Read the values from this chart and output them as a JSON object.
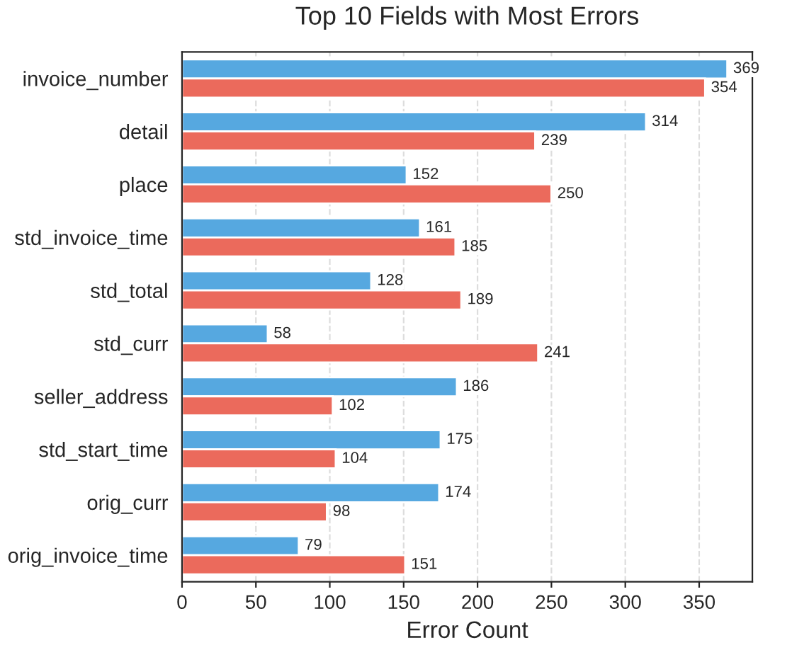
{
  "chart_data": {
    "type": "bar",
    "orientation": "horizontal",
    "title": "Top 10 Fields with Most Errors",
    "xlabel": "Error Count",
    "categories": [
      "invoice_number",
      "detail",
      "place",
      "std_invoice_time",
      "std_total",
      "std_curr",
      "seller_address",
      "std_start_time",
      "orig_curr",
      "orig_invoice_time"
    ],
    "series": [
      {
        "color": "#56a8e0",
        "values": [
          369,
          314,
          152,
          161,
          128,
          58,
          186,
          175,
          174,
          79
        ]
      },
      {
        "color": "#eb6a5c",
        "values": [
          354,
          239,
          250,
          185,
          189,
          241,
          102,
          104,
          98,
          151
        ]
      }
    ],
    "xlim": [
      0,
      386
    ],
    "xticks": [
      0,
      50,
      100,
      150,
      200,
      250,
      300,
      350
    ],
    "grid": "x",
    "data_labels": true
  }
}
